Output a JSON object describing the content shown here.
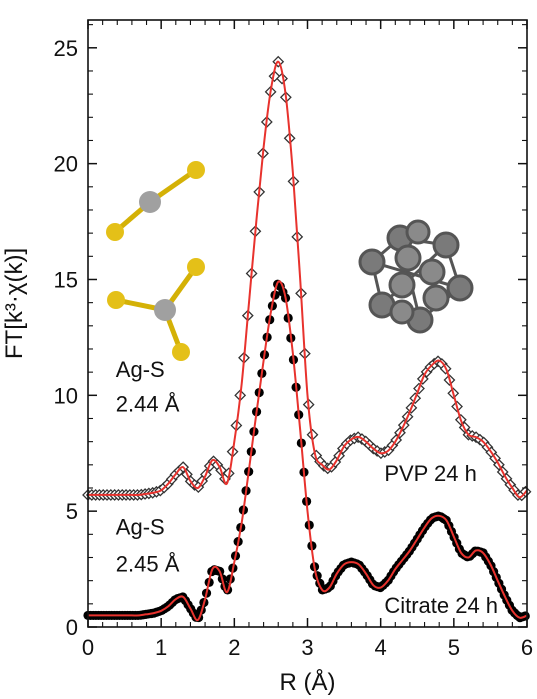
{
  "chart_data": {
    "type": "line",
    "title": "",
    "xlabel": "R (Å)",
    "ylabel": "FT[k³·χ(k)]",
    "xlim": [
      0,
      6
    ],
    "ylim": [
      0,
      26.2
    ],
    "xticks": [
      "0",
      "1",
      "2",
      "3",
      "4",
      "5",
      "6"
    ],
    "yticks": [
      "0",
      "5",
      "10",
      "15",
      "20",
      "25"
    ],
    "grid": false,
    "legend": "none",
    "colors": {
      "fit": "#e8322d",
      "pvp_marker": "#333333",
      "citrate_marker": "#000000"
    },
    "series": [
      {
        "name": "PVP 24 h",
        "marker": "open-diamond",
        "x": [
          0.0,
          0.1,
          0.2,
          0.3,
          0.4,
          0.5,
          0.6,
          0.7,
          0.8,
          0.9,
          1.0,
          1.1,
          1.2,
          1.3,
          1.4,
          1.5,
          1.6,
          1.7,
          1.8,
          1.9,
          2.0,
          2.1,
          2.2,
          2.3,
          2.4,
          2.5,
          2.6,
          2.7,
          2.8,
          2.9,
          3.0,
          3.1,
          3.2,
          3.3,
          3.4,
          3.5,
          3.6,
          3.7,
          3.8,
          3.9,
          4.0,
          4.1,
          4.2,
          4.3,
          4.4,
          4.5,
          4.6,
          4.7,
          4.8,
          4.9,
          5.0,
          5.1,
          5.2,
          5.3,
          5.4,
          5.5,
          5.6,
          5.7,
          5.8,
          5.9,
          6.0
        ],
        "y": [
          5.7,
          5.7,
          5.7,
          5.7,
          5.7,
          5.7,
          5.7,
          5.7,
          5.75,
          5.8,
          5.9,
          6.2,
          6.6,
          6.9,
          6.3,
          6.0,
          6.5,
          7.2,
          6.9,
          6.2,
          8.0,
          10.5,
          14.0,
          17.5,
          20.7,
          23.2,
          24.4,
          23.0,
          19.6,
          15.0,
          10.0,
          7.5,
          7.0,
          6.8,
          7.2,
          7.8,
          8.1,
          8.2,
          8.0,
          7.7,
          7.5,
          7.6,
          8.0,
          8.6,
          9.3,
          10.1,
          10.9,
          11.3,
          11.5,
          11.1,
          10.0,
          8.9,
          8.3,
          8.2,
          8.0,
          7.6,
          7.1,
          6.5,
          6.0,
          5.6,
          5.9
        ]
      },
      {
        "name": "Citrate 24 h",
        "marker": "filled-circle",
        "x": [
          0.0,
          0.1,
          0.2,
          0.3,
          0.4,
          0.5,
          0.6,
          0.7,
          0.8,
          0.9,
          1.0,
          1.1,
          1.2,
          1.3,
          1.4,
          1.5,
          1.6,
          1.7,
          1.8,
          1.9,
          2.0,
          2.1,
          2.2,
          2.3,
          2.4,
          2.5,
          2.6,
          2.7,
          2.8,
          2.9,
          3.0,
          3.1,
          3.2,
          3.3,
          3.4,
          3.5,
          3.6,
          3.7,
          3.8,
          3.9,
          4.0,
          4.1,
          4.2,
          4.3,
          4.4,
          4.5,
          4.6,
          4.7,
          4.8,
          4.9,
          5.0,
          5.1,
          5.2,
          5.3,
          5.4,
          5.5,
          5.6,
          5.7,
          5.8,
          5.9,
          6.0
        ],
        "y": [
          0.5,
          0.5,
          0.5,
          0.5,
          0.5,
          0.5,
          0.5,
          0.5,
          0.55,
          0.6,
          0.7,
          0.9,
          1.2,
          1.3,
          0.8,
          0.3,
          1.2,
          2.5,
          2.4,
          1.5,
          2.8,
          4.5,
          6.8,
          9.2,
          11.5,
          13.6,
          14.9,
          14.2,
          11.8,
          8.5,
          5.0,
          2.5,
          1.6,
          1.7,
          2.3,
          2.7,
          2.8,
          2.7,
          2.3,
          1.8,
          1.7,
          2.0,
          2.5,
          2.9,
          3.3,
          3.8,
          4.3,
          4.7,
          4.8,
          4.6,
          3.9,
          3.2,
          3.0,
          3.3,
          3.2,
          2.7,
          2.0,
          1.3,
          0.7,
          0.4,
          0.5
        ]
      }
    ],
    "annotations": [
      {
        "text": "Ag-S",
        "x": 0.38,
        "y": 10.8
      },
      {
        "text": "2.44 Å",
        "x": 0.38,
        "y": 9.3
      },
      {
        "text": "Ag-S",
        "x": 0.38,
        "y": 4.0
      },
      {
        "text": "2.45 Å",
        "x": 0.38,
        "y": 2.4
      },
      {
        "text": "PVP 24 h",
        "x": 4.05,
        "y": 6.3
      },
      {
        "text": "Citrate 24 h",
        "x": 4.05,
        "y": 0.6
      }
    ]
  }
}
